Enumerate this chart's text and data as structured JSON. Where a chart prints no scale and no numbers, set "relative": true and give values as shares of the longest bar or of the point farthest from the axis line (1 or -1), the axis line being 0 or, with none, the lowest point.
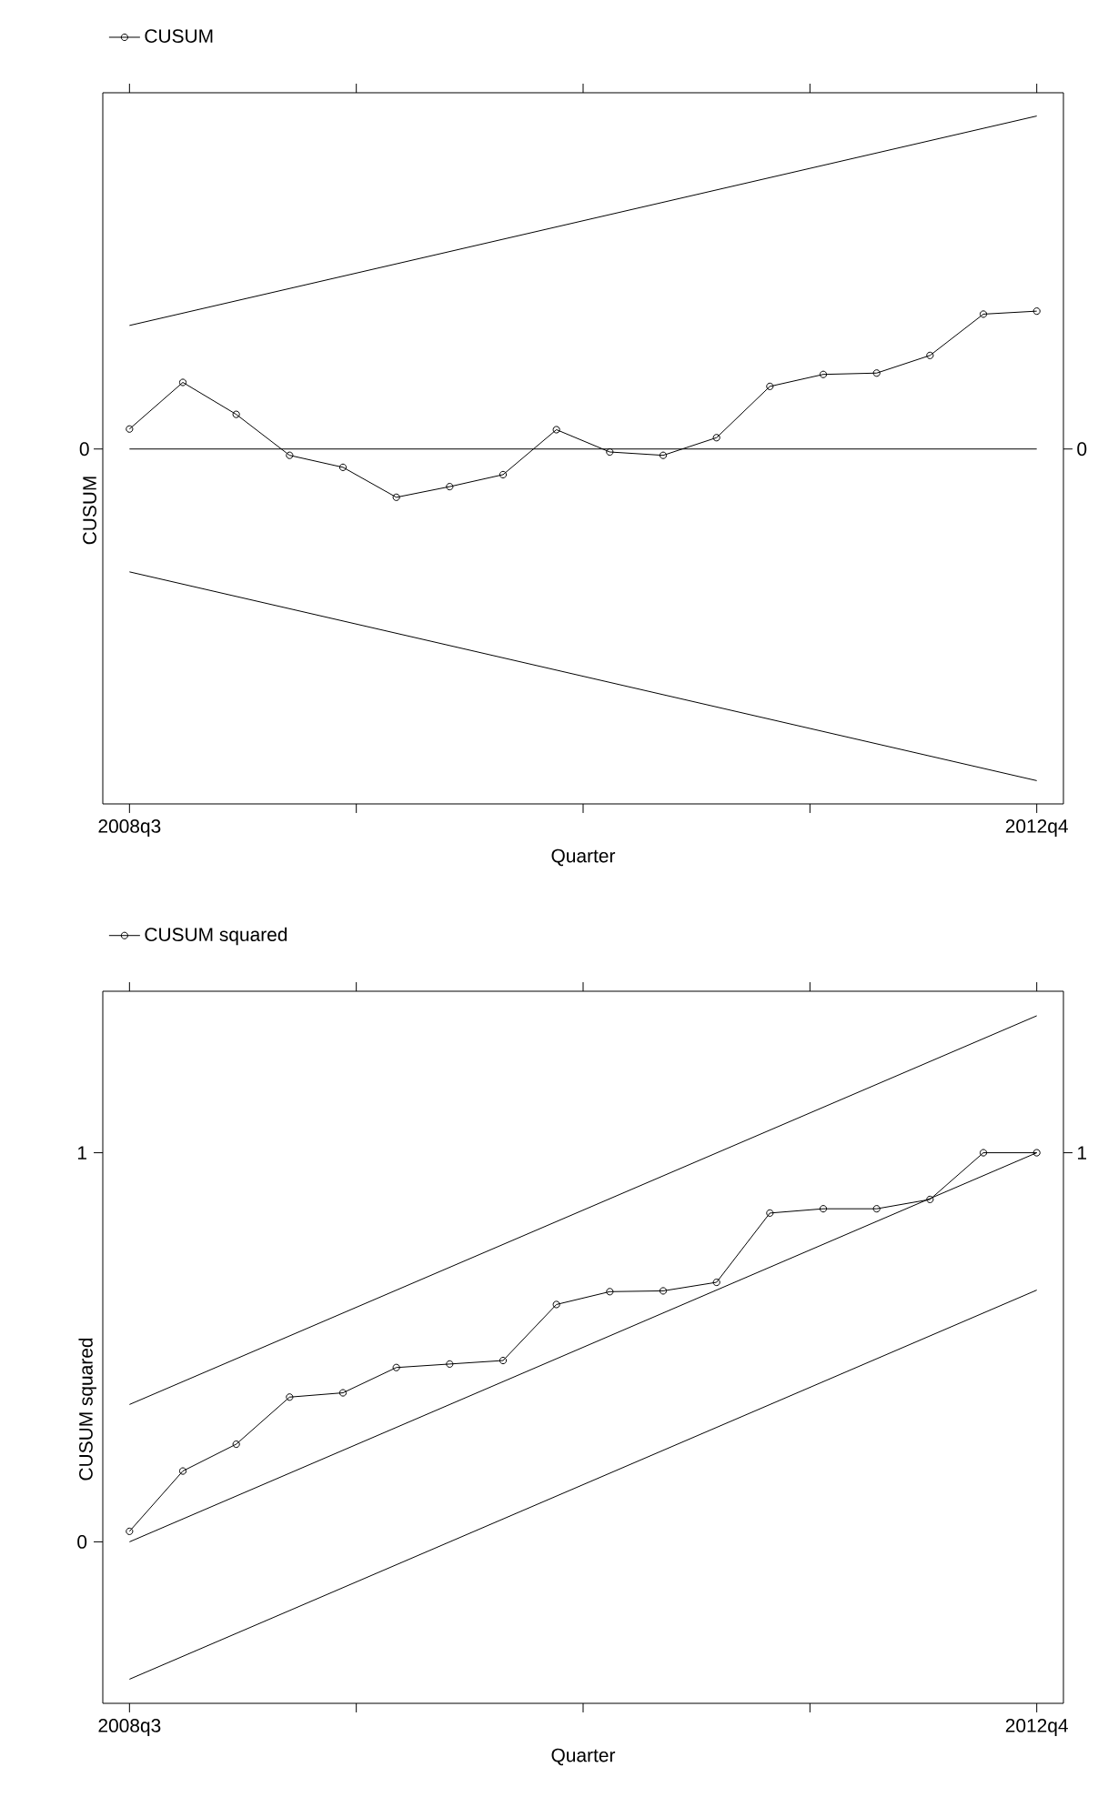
{
  "chart_data": [
    {
      "type": "line",
      "relative": true,
      "xlabel": "Quarter",
      "ylabel": "CUSUM",
      "legend": "top left",
      "categories": [
        "2008q3",
        null,
        null,
        null,
        null,
        null,
        null,
        null,
        null,
        null,
        null,
        null,
        null,
        null,
        null,
        null,
        null,
        "2012q4"
      ],
      "ref_lines": [
        {
          "axis": "y",
          "value": 0,
          "label": "0",
          "color": "#000000"
        }
      ],
      "series": [
        {
          "name": "CUSUM",
          "color": "#000000",
          "marker": "circle",
          "values": [
            0.06,
            0.2,
            0.104,
            -0.019,
            -0.055,
            -0.145,
            -0.113,
            -0.077,
            0.058,
            -0.009,
            -0.019,
            0.034,
            0.188,
            0.224,
            0.228,
            0.281,
            0.405,
            0.414
          ]
        },
        {
          "color": "#000000",
          "x": [
            "2008q3",
            "2012q4"
          ],
          "values": [
            0.371,
            1.0
          ]
        },
        {
          "color": "#000000",
          "x": [
            "2008q3",
            "2012q4"
          ],
          "values": [
            -0.369,
            -0.996
          ]
        }
      ]
    },
    {
      "type": "line",
      "xlabel": "Quarter",
      "ylabel": "CUSUM squared",
      "legend": "top left",
      "categories": [
        "2008q3",
        null,
        null,
        null,
        null,
        null,
        null,
        null,
        null,
        null,
        null,
        null,
        null,
        null,
        null,
        null,
        null,
        "2012q4"
      ],
      "ylim": [
        -0.415,
        1.415
      ],
      "yticks": [
        0,
        1
      ],
      "annotations": [
        {
          "text": "1",
          "x": "2012q4",
          "y": 1
        }
      ],
      "series": [
        {
          "name": "CUSUM squared",
          "color": "#000000",
          "marker": "circle",
          "values": [
            0.027,
            0.182,
            0.251,
            0.372,
            0.383,
            0.448,
            0.457,
            0.466,
            0.61,
            0.643,
            0.645,
            0.667,
            0.845,
            0.856,
            0.856,
            0.88,
            1.0,
            1.0
          ]
        },
        {
          "color": "#000000",
          "x": [
            "2008q3",
            "2012q4"
          ],
          "values": [
            0.353,
            1.352
          ]
        },
        {
          "color": "#000000",
          "x": [
            "2008q3",
            "2012q4"
          ],
          "values": [
            0,
            1
          ]
        },
        {
          "color": "#000000",
          "x": [
            "2008q3",
            "2012q4"
          ],
          "values": [
            -0.353,
            0.647
          ]
        }
      ]
    }
  ]
}
